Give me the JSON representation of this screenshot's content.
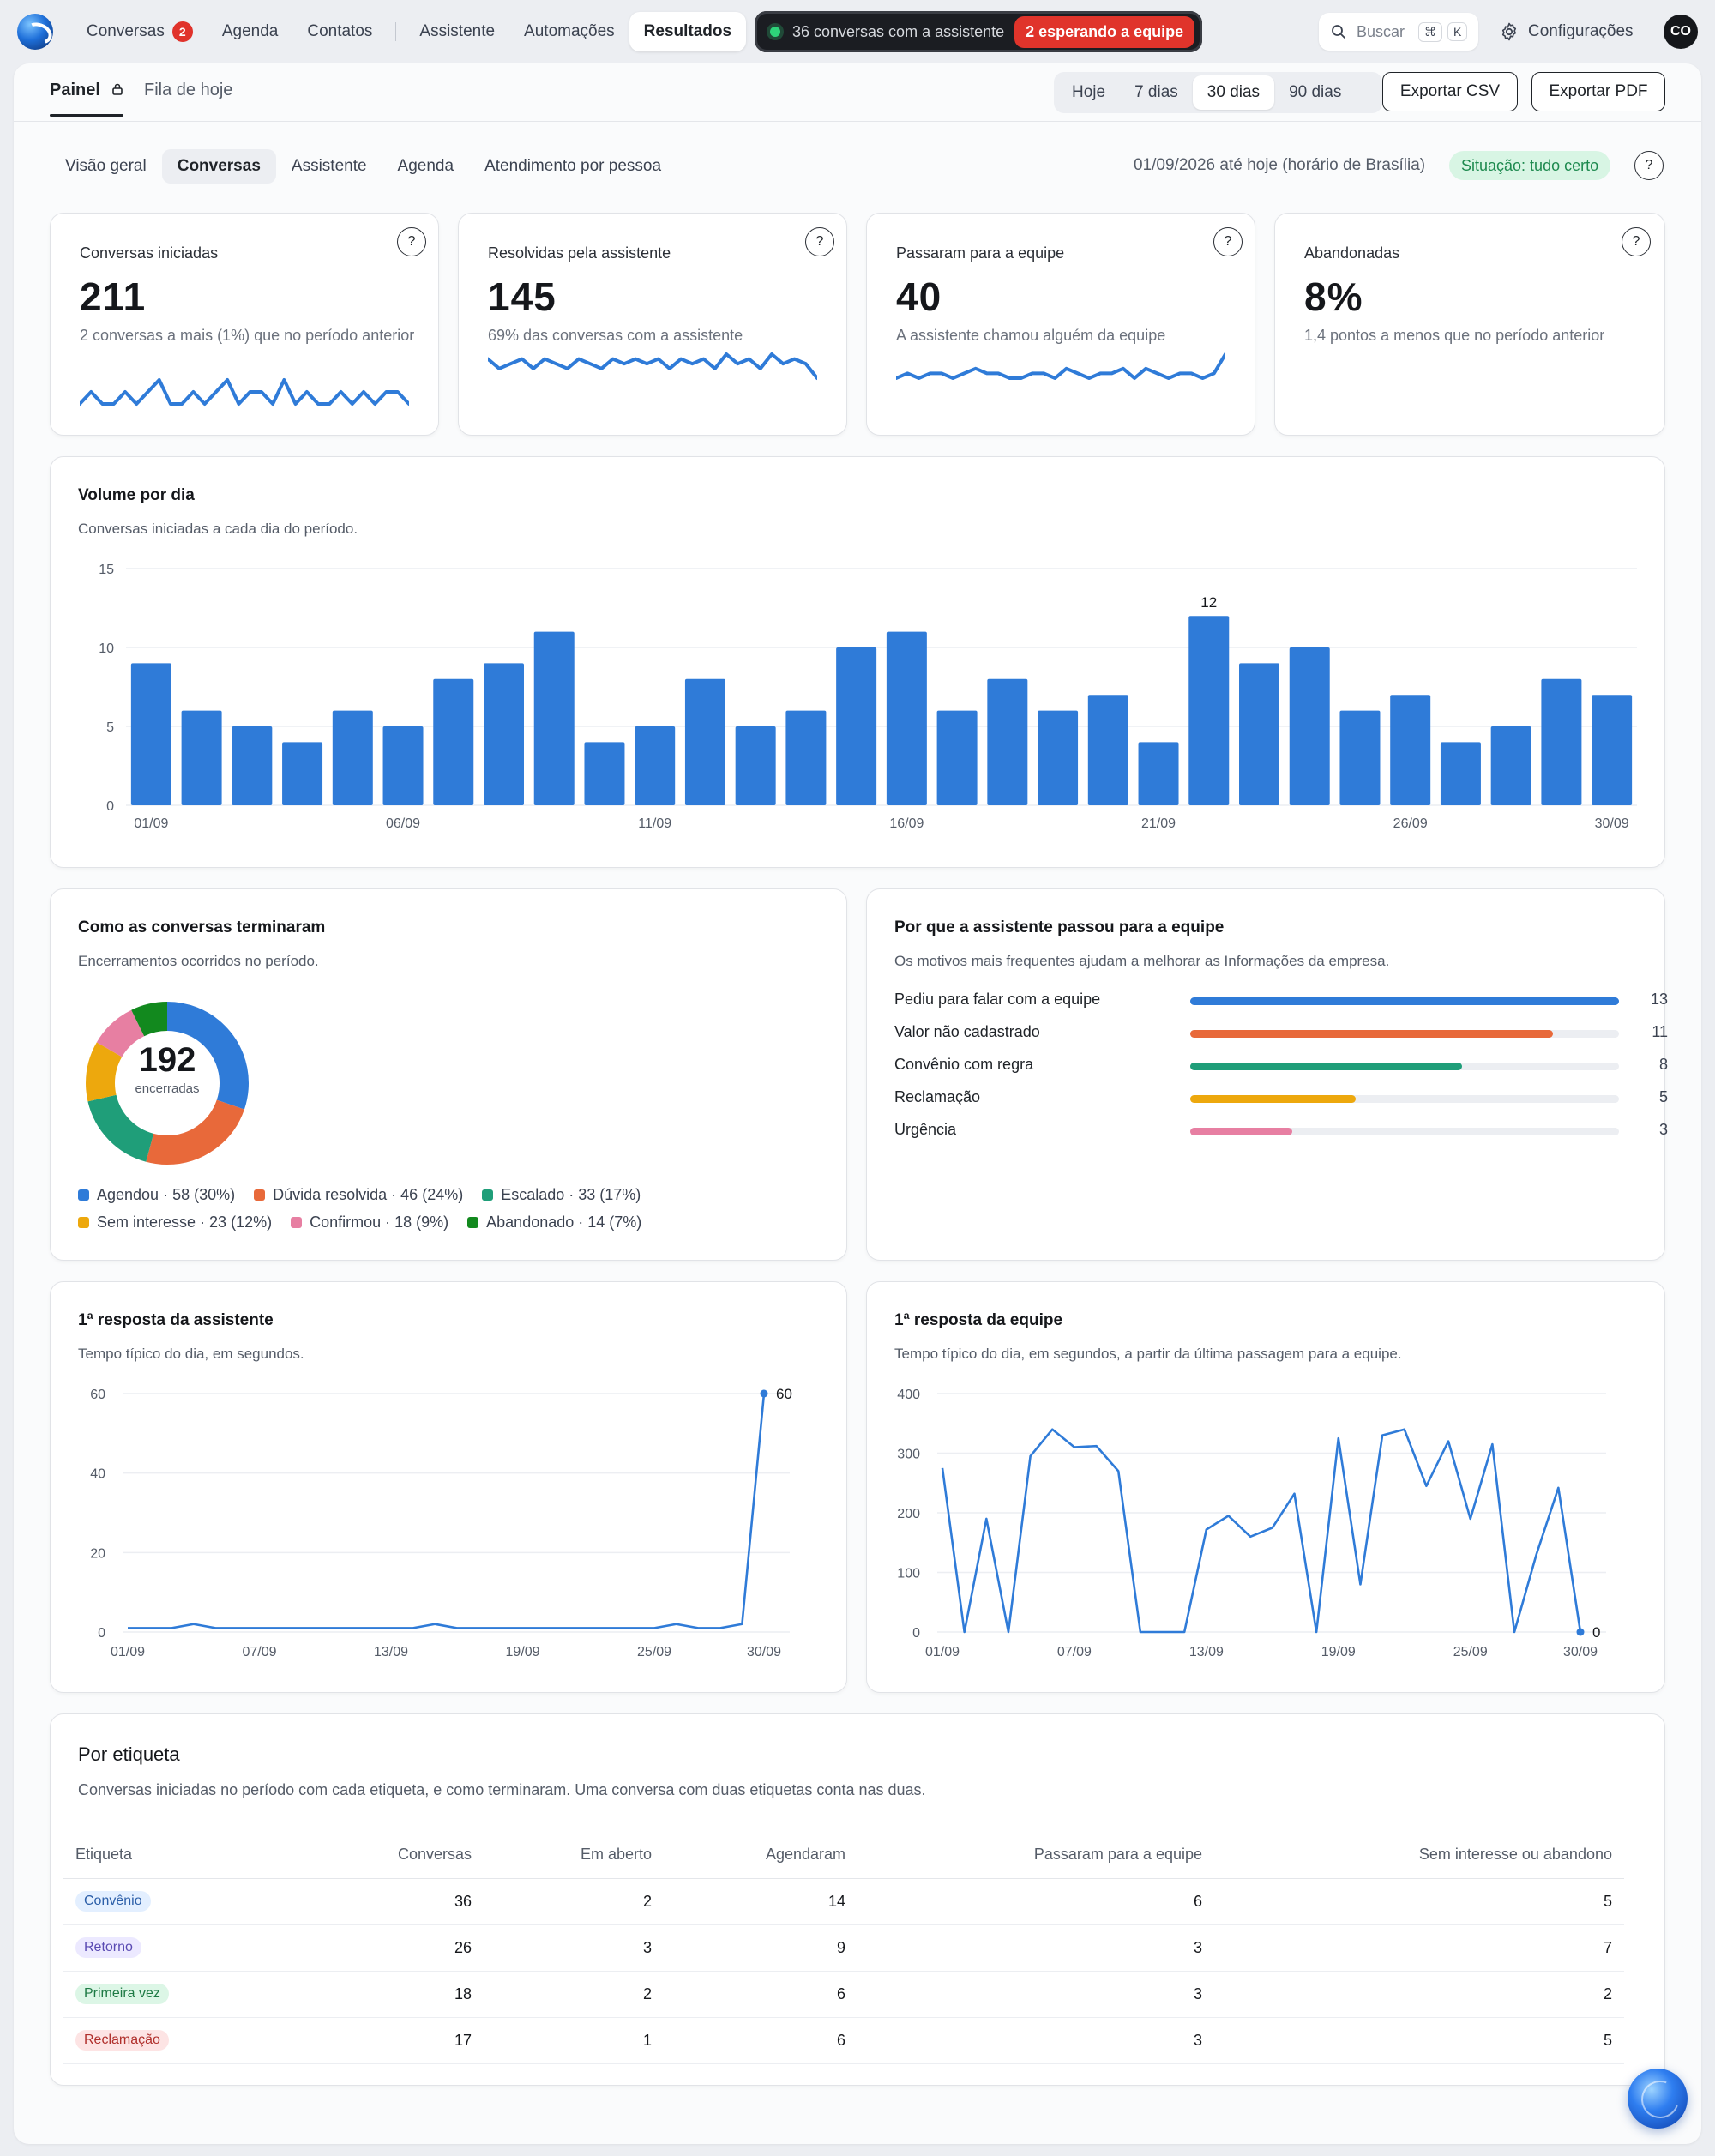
{
  "nav": {
    "links": [
      {
        "label": "Conversas",
        "badge": "2"
      },
      {
        "label": "Agenda"
      },
      {
        "label": "Contatos"
      },
      {
        "label": "Assistente"
      },
      {
        "label": "Automações"
      },
      {
        "label": "Resultados"
      }
    ],
    "status_text": "36 conversas com a assistente",
    "status_waiting": "2 esperando a equipe",
    "search_placeholder": "Buscar",
    "search_kbd_1": "⌘",
    "search_kbd_2": "K",
    "settings_label": "Configurações",
    "avatar_initials": "CO"
  },
  "subnav": {
    "tab_panel": "Painel",
    "tab_queue": "Fila de hoje",
    "ranges": [
      "Hoje",
      "7 dias",
      "30 dias",
      "90 dias"
    ],
    "export_csv": "Exportar CSV",
    "export_pdf": "Exportar PDF"
  },
  "section_tabs": [
    "Visão geral",
    "Conversas",
    "Assistente",
    "Agenda",
    "Atendimento por pessoa"
  ],
  "period_text": "01/09/2026 até hoje (horário de Brasília)",
  "status_badge": "Situação: tudo certo",
  "help_glyph": "?",
  "kpis": [
    {
      "label": "Conversas iniciadas",
      "value": "211",
      "note": "2 conversas a mais (1%) que no período anterior"
    },
    {
      "label": "Resolvidas pela assistente",
      "value": "145",
      "note": "69% das conversas com a assistente"
    },
    {
      "label": "Passaram para a equipe",
      "value": "40",
      "note": "A assistente chamou alguém da equipe"
    },
    {
      "label": "Abandonadas",
      "value": "8%",
      "note": "1,4 pontos a menos que no período anterior"
    }
  ],
  "sparklines": [
    [
      4,
      5,
      4,
      4,
      5,
      4,
      5,
      6,
      4,
      4,
      5,
      4,
      5,
      6,
      4,
      5,
      5,
      4,
      6,
      4,
      5,
      4,
      4,
      5,
      4,
      5,
      4,
      5,
      5,
      4
    ],
    [
      6,
      4,
      5,
      6,
      4,
      6,
      5,
      4,
      6,
      5,
      4,
      6,
      5,
      6,
      5,
      6,
      4,
      6,
      5,
      6,
      4,
      7,
      5,
      6,
      4,
      7,
      5,
      6,
      5,
      2
    ],
    [
      3,
      4,
      3,
      4,
      4,
      3,
      4,
      5,
      4,
      4,
      3,
      3,
      4,
      4,
      3,
      5,
      4,
      3,
      4,
      4,
      5,
      3,
      5,
      4,
      3,
      4,
      4,
      3,
      4,
      8
    ],
    []
  ],
  "volume": {
    "title": "Volume por dia",
    "subtitle": "Conversas iniciadas a cada dia do período.",
    "peak_label": "12"
  },
  "outcomes": {
    "title": "Como as conversas terminaram",
    "subtitle": "Encerramentos ocorridos no período.",
    "total": "192",
    "total_label": "encerradas",
    "legend": [
      "Agendou · 58 (30%)",
      "Dúvida resolvida · 46 (24%)",
      "Escalado · 33 (17%)",
      "Sem interesse · 23 (12%)",
      "Confirmou · 18 (9%)",
      "Abandonado · 14 (7%)"
    ],
    "colors": [
      "#2f7bd8",
      "#e8693a",
      "#1f9e79",
      "#eda80d",
      "#e77fa2",
      "#12891e"
    ]
  },
  "reasons": {
    "title": "Por que a assistente passou para a equipe",
    "subtitle": "Os motivos mais frequentes ajudam a melhorar as Informações da empresa.",
    "items": [
      {
        "label": "Pediu para falar com a equipe",
        "value": "13",
        "fraction": 1.0,
        "color": "#2f7bd8"
      },
      {
        "label": "Valor não cadastrado",
        "value": "11",
        "fraction": 0.846,
        "color": "#e8693a"
      },
      {
        "label": "Convênio com regra",
        "value": "8",
        "fraction": 0.633,
        "color": "#1f9e79"
      },
      {
        "label": "Reclamação",
        "value": "5",
        "fraction": 0.386,
        "color": "#eda80d"
      },
      {
        "label": "Urgência",
        "value": "3",
        "fraction": 0.237,
        "color": "#e77fa2"
      }
    ]
  },
  "resp_assist": {
    "title": "1ª resposta da assistente",
    "subtitle": "Tempo típico do dia, em segundos.",
    "end_label": "60"
  },
  "resp_team": {
    "title": "1ª resposta da equipe",
    "subtitle": "Tempo típico do dia, em segundos, a partir da última passagem para a equipe.",
    "end_label": "0"
  },
  "tags_table": {
    "title": "Por etiqueta",
    "subtitle": "Conversas iniciadas no período com cada etiqueta, e como terminaram. Uma conversa com duas etiquetas conta nas duas.",
    "headers": [
      "Etiqueta",
      "Conversas",
      "Em aberto",
      "Agendaram",
      "Passaram para a equipe",
      "Sem interesse ou abandono"
    ],
    "rows": [
      {
        "tag": "Convênio",
        "tag_bg": "#e3efff",
        "tag_fg": "#2b5ea8",
        "cells": [
          "36",
          "2",
          "14",
          "6",
          "5"
        ]
      },
      {
        "tag": "Retorno",
        "tag_bg": "#ece9ff",
        "tag_fg": "#5a4ab3",
        "cells": [
          "26",
          "3",
          "9",
          "3",
          "7"
        ]
      },
      {
        "tag": "Primeira vez",
        "tag_bg": "#dcf6e6",
        "tag_fg": "#1e7a45",
        "cells": [
          "18",
          "2",
          "6",
          "3",
          "2"
        ]
      },
      {
        "tag": "Reclamação",
        "tag_bg": "#fde4e4",
        "tag_fg": "#b0302c",
        "cells": [
          "17",
          "1",
          "6",
          "3",
          "5"
        ]
      }
    ]
  },
  "chart_data": [
    {
      "type": "bar",
      "title": "Volume por dia",
      "categories": [
        "01/09",
        "02/09",
        "03/09",
        "04/09",
        "05/09",
        "06/09",
        "07/09",
        "08/09",
        "09/09",
        "10/09",
        "11/09",
        "12/09",
        "13/09",
        "14/09",
        "15/09",
        "16/09",
        "17/09",
        "18/09",
        "19/09",
        "20/09",
        "21/09",
        "22/09",
        "23/09",
        "24/09",
        "25/09",
        "26/09",
        "27/09",
        "28/09",
        "29/09",
        "30/09"
      ],
      "values": [
        9,
        6,
        5,
        4,
        6,
        5,
        8,
        9,
        11,
        4,
        5,
        8,
        5,
        6,
        10,
        11,
        6,
        8,
        6,
        7,
        4,
        12,
        9,
        10,
        6,
        7,
        4,
        5,
        8,
        7
      ],
      "x_tick_labels": [
        "01/09",
        "06/09",
        "11/09",
        "16/09",
        "21/09",
        "26/09",
        "30/09"
      ],
      "y_ticks": [
        "0",
        "5",
        "10",
        "15"
      ],
      "ylim": [
        0,
        15
      ],
      "color": "#2f7bd8"
    },
    {
      "type": "pie",
      "title": "Como as conversas terminaram",
      "categories": [
        "Agendou",
        "Dúvida resolvida",
        "Escalado",
        "Sem interesse",
        "Confirmou",
        "Abandonado"
      ],
      "values": [
        58,
        46,
        33,
        23,
        18,
        14
      ]
    },
    {
      "type": "bar",
      "title": "Por que a assistente passou para a equipe",
      "categories": [
        "Pediu para falar com a equipe",
        "Valor não cadastrado",
        "Convênio com regra",
        "Reclamação",
        "Urgência"
      ],
      "values": [
        13,
        11,
        8,
        5,
        3
      ]
    },
    {
      "type": "line",
      "title": "1ª resposta da assistente",
      "x": [
        "01/09",
        "02/09",
        "03/09",
        "04/09",
        "05/09",
        "06/09",
        "07/09",
        "08/09",
        "09/09",
        "10/09",
        "11/09",
        "12/09",
        "13/09",
        "14/09",
        "15/09",
        "16/09",
        "17/09",
        "18/09",
        "19/09",
        "20/09",
        "21/09",
        "22/09",
        "23/09",
        "24/09",
        "25/09",
        "26/09",
        "27/09",
        "28/09",
        "29/09",
        "30/09"
      ],
      "values": [
        1,
        1,
        1,
        2,
        1,
        1,
        1,
        1,
        1,
        1,
        1,
        1,
        1,
        1,
        2,
        1,
        1,
        1,
        1,
        1,
        1,
        1,
        1,
        1,
        1,
        2,
        1,
        1,
        2,
        60
      ],
      "x_tick_labels": [
        "01/09",
        "07/09",
        "13/09",
        "19/09",
        "25/09",
        "30/09"
      ],
      "y_ticks": [
        "0",
        "20",
        "40",
        "60"
      ],
      "ylim": [
        0,
        60
      ],
      "color": "#2f7bd8"
    },
    {
      "type": "line",
      "title": "1ª resposta da equipe",
      "x": [
        "01/09",
        "02/09",
        "03/09",
        "04/09",
        "05/09",
        "06/09",
        "07/09",
        "08/09",
        "09/09",
        "10/09",
        "11/09",
        "12/09",
        "13/09",
        "14/09",
        "15/09",
        "16/09",
        "17/09",
        "18/09",
        "19/09",
        "20/09",
        "21/09",
        "22/09",
        "23/09",
        "24/09",
        "25/09",
        "26/09",
        "27/09",
        "28/09",
        "29/09",
        "30/09"
      ],
      "values": [
        275,
        0,
        190,
        0,
        295,
        340,
        310,
        312,
        270,
        0,
        0,
        0,
        172,
        195,
        160,
        175,
        232,
        0,
        325,
        80,
        330,
        340,
        245,
        320,
        190,
        315,
        0,
        130,
        242,
        0
      ],
      "x_tick_labels": [
        "01/09",
        "07/09",
        "13/09",
        "19/09",
        "25/09",
        "30/09"
      ],
      "y_ticks": [
        "0",
        "100",
        "200",
        "300",
        "400"
      ],
      "ylim": [
        0,
        400
      ],
      "color": "#2f7bd8"
    }
  ]
}
